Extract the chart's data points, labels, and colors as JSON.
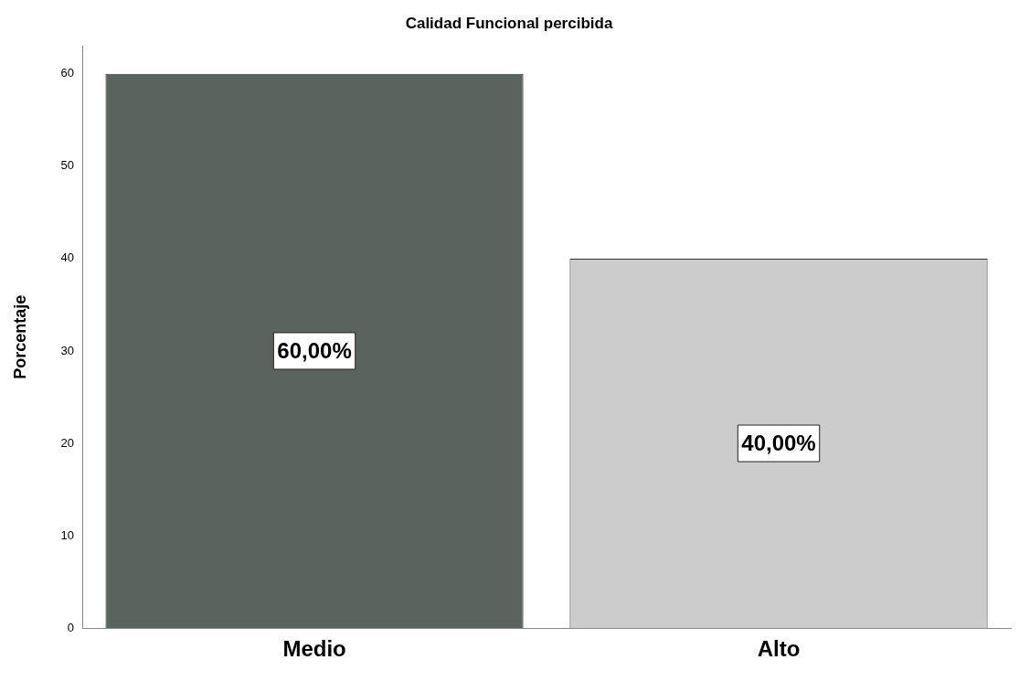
{
  "chart_data": {
    "type": "bar",
    "title": "Calidad Funcional percibida",
    "ylabel": "Porcentaje",
    "categories": [
      "Medio",
      "Alto"
    ],
    "values": [
      60,
      40
    ],
    "colors": [
      "#5a635d",
      "#cccccc"
    ],
    "value_labels": [
      "60,00%",
      "40,00%"
    ],
    "ylim": [
      0,
      63
    ],
    "yticks": [
      0,
      10,
      20,
      30,
      40,
      50,
      60
    ],
    "grid": false,
    "legend": false
  }
}
